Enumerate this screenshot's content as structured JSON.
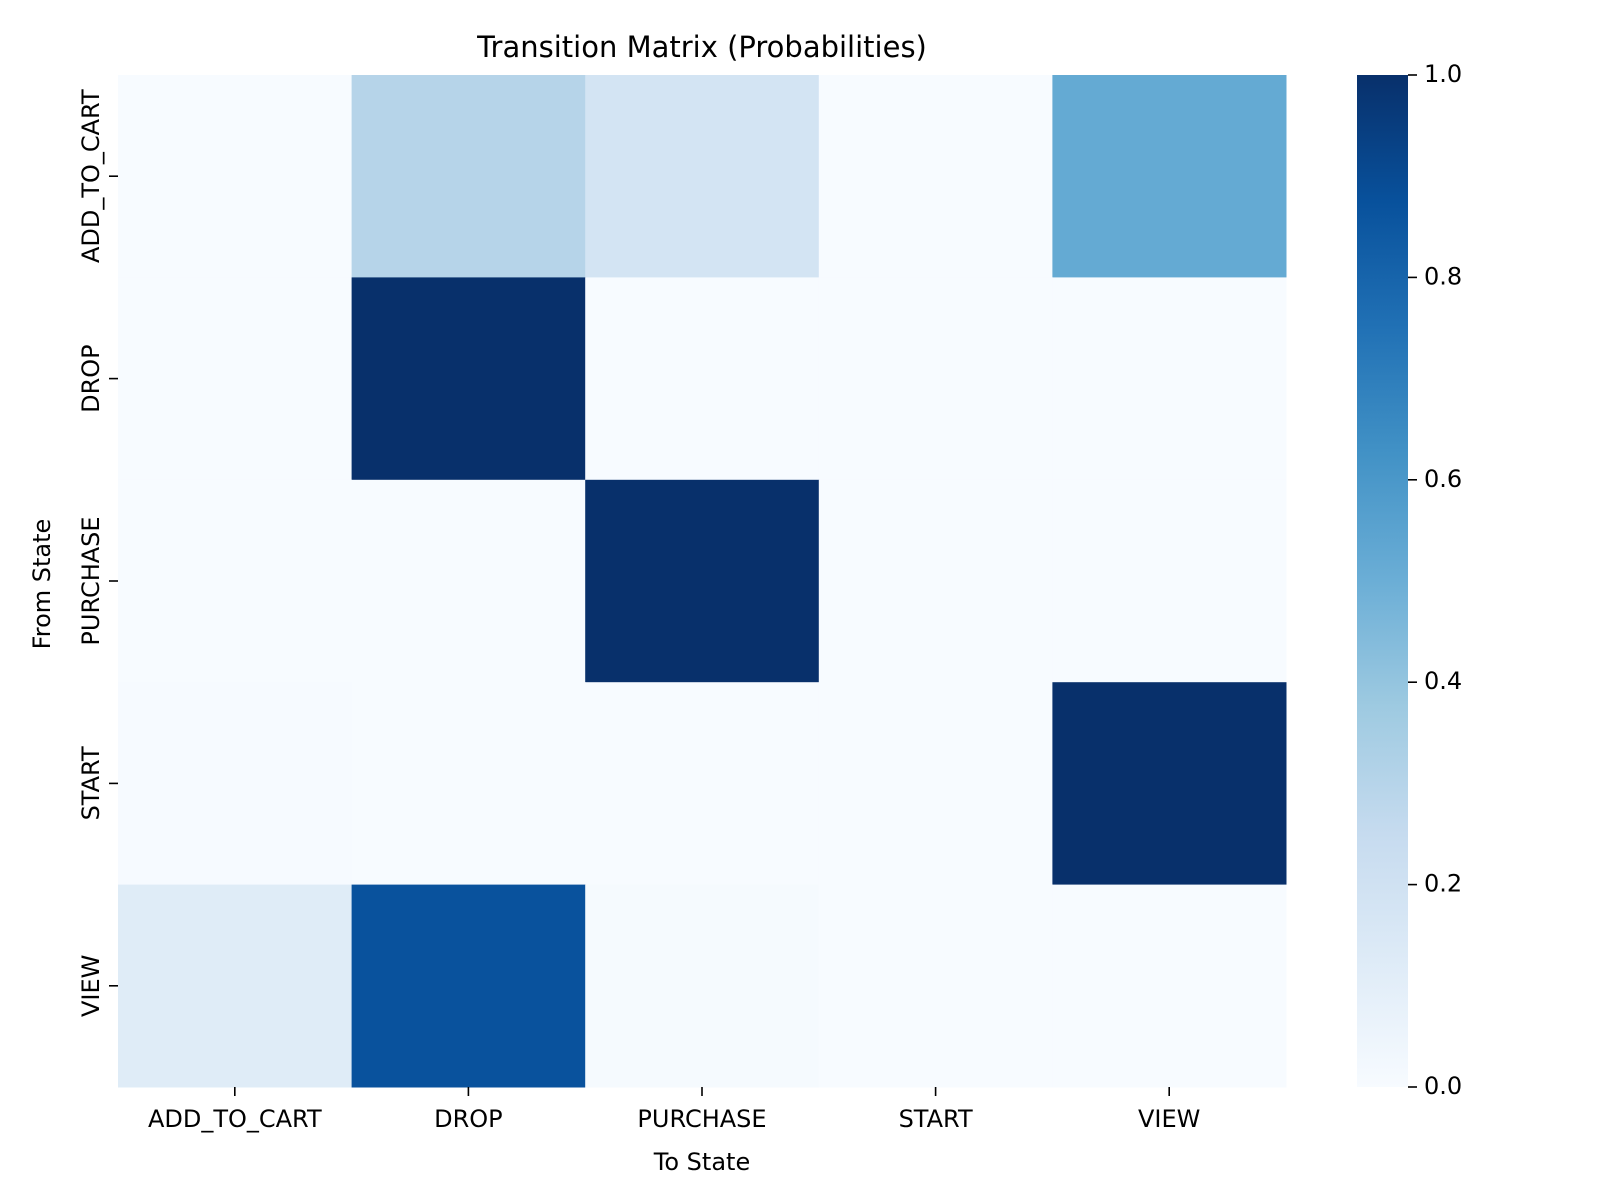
{
  "chart_data": {
    "type": "heatmap",
    "title": "Transition Matrix (Probabilities)",
    "xlabel": "To State",
    "ylabel": "From State",
    "x_categories": [
      "ADD_TO_CART",
      "DROP",
      "PURCHASE",
      "START",
      "VIEW"
    ],
    "y_categories": [
      "ADD_TO_CART",
      "DROP",
      "PURCHASE",
      "START",
      "VIEW"
    ],
    "values": [
      [
        0.0,
        0.3,
        0.18,
        0.0,
        0.52
      ],
      [
        0.0,
        1.0,
        0.0,
        0.0,
        0.0
      ],
      [
        0.0,
        0.0,
        1.0,
        0.0,
        0.0
      ],
      [
        0.005,
        0.0,
        0.0,
        0.0,
        1.0
      ],
      [
        0.12,
        0.87,
        0.01,
        0.0,
        0.0
      ]
    ],
    "colorbar": {
      "range": [
        0.0,
        1.0
      ],
      "ticks": [
        0.0,
        0.2,
        0.4,
        0.6,
        0.8,
        1.0
      ],
      "tick_labels": [
        "0.0",
        "0.2",
        "0.4",
        "0.6",
        "0.8",
        "1.0"
      ],
      "colormap": "Blues",
      "colors": [
        "#f7fbff",
        "#deebf7",
        "#c6dbef",
        "#9ecae1",
        "#6baed6",
        "#4292c6",
        "#2171b5",
        "#08519c",
        "#08306b"
      ]
    }
  }
}
